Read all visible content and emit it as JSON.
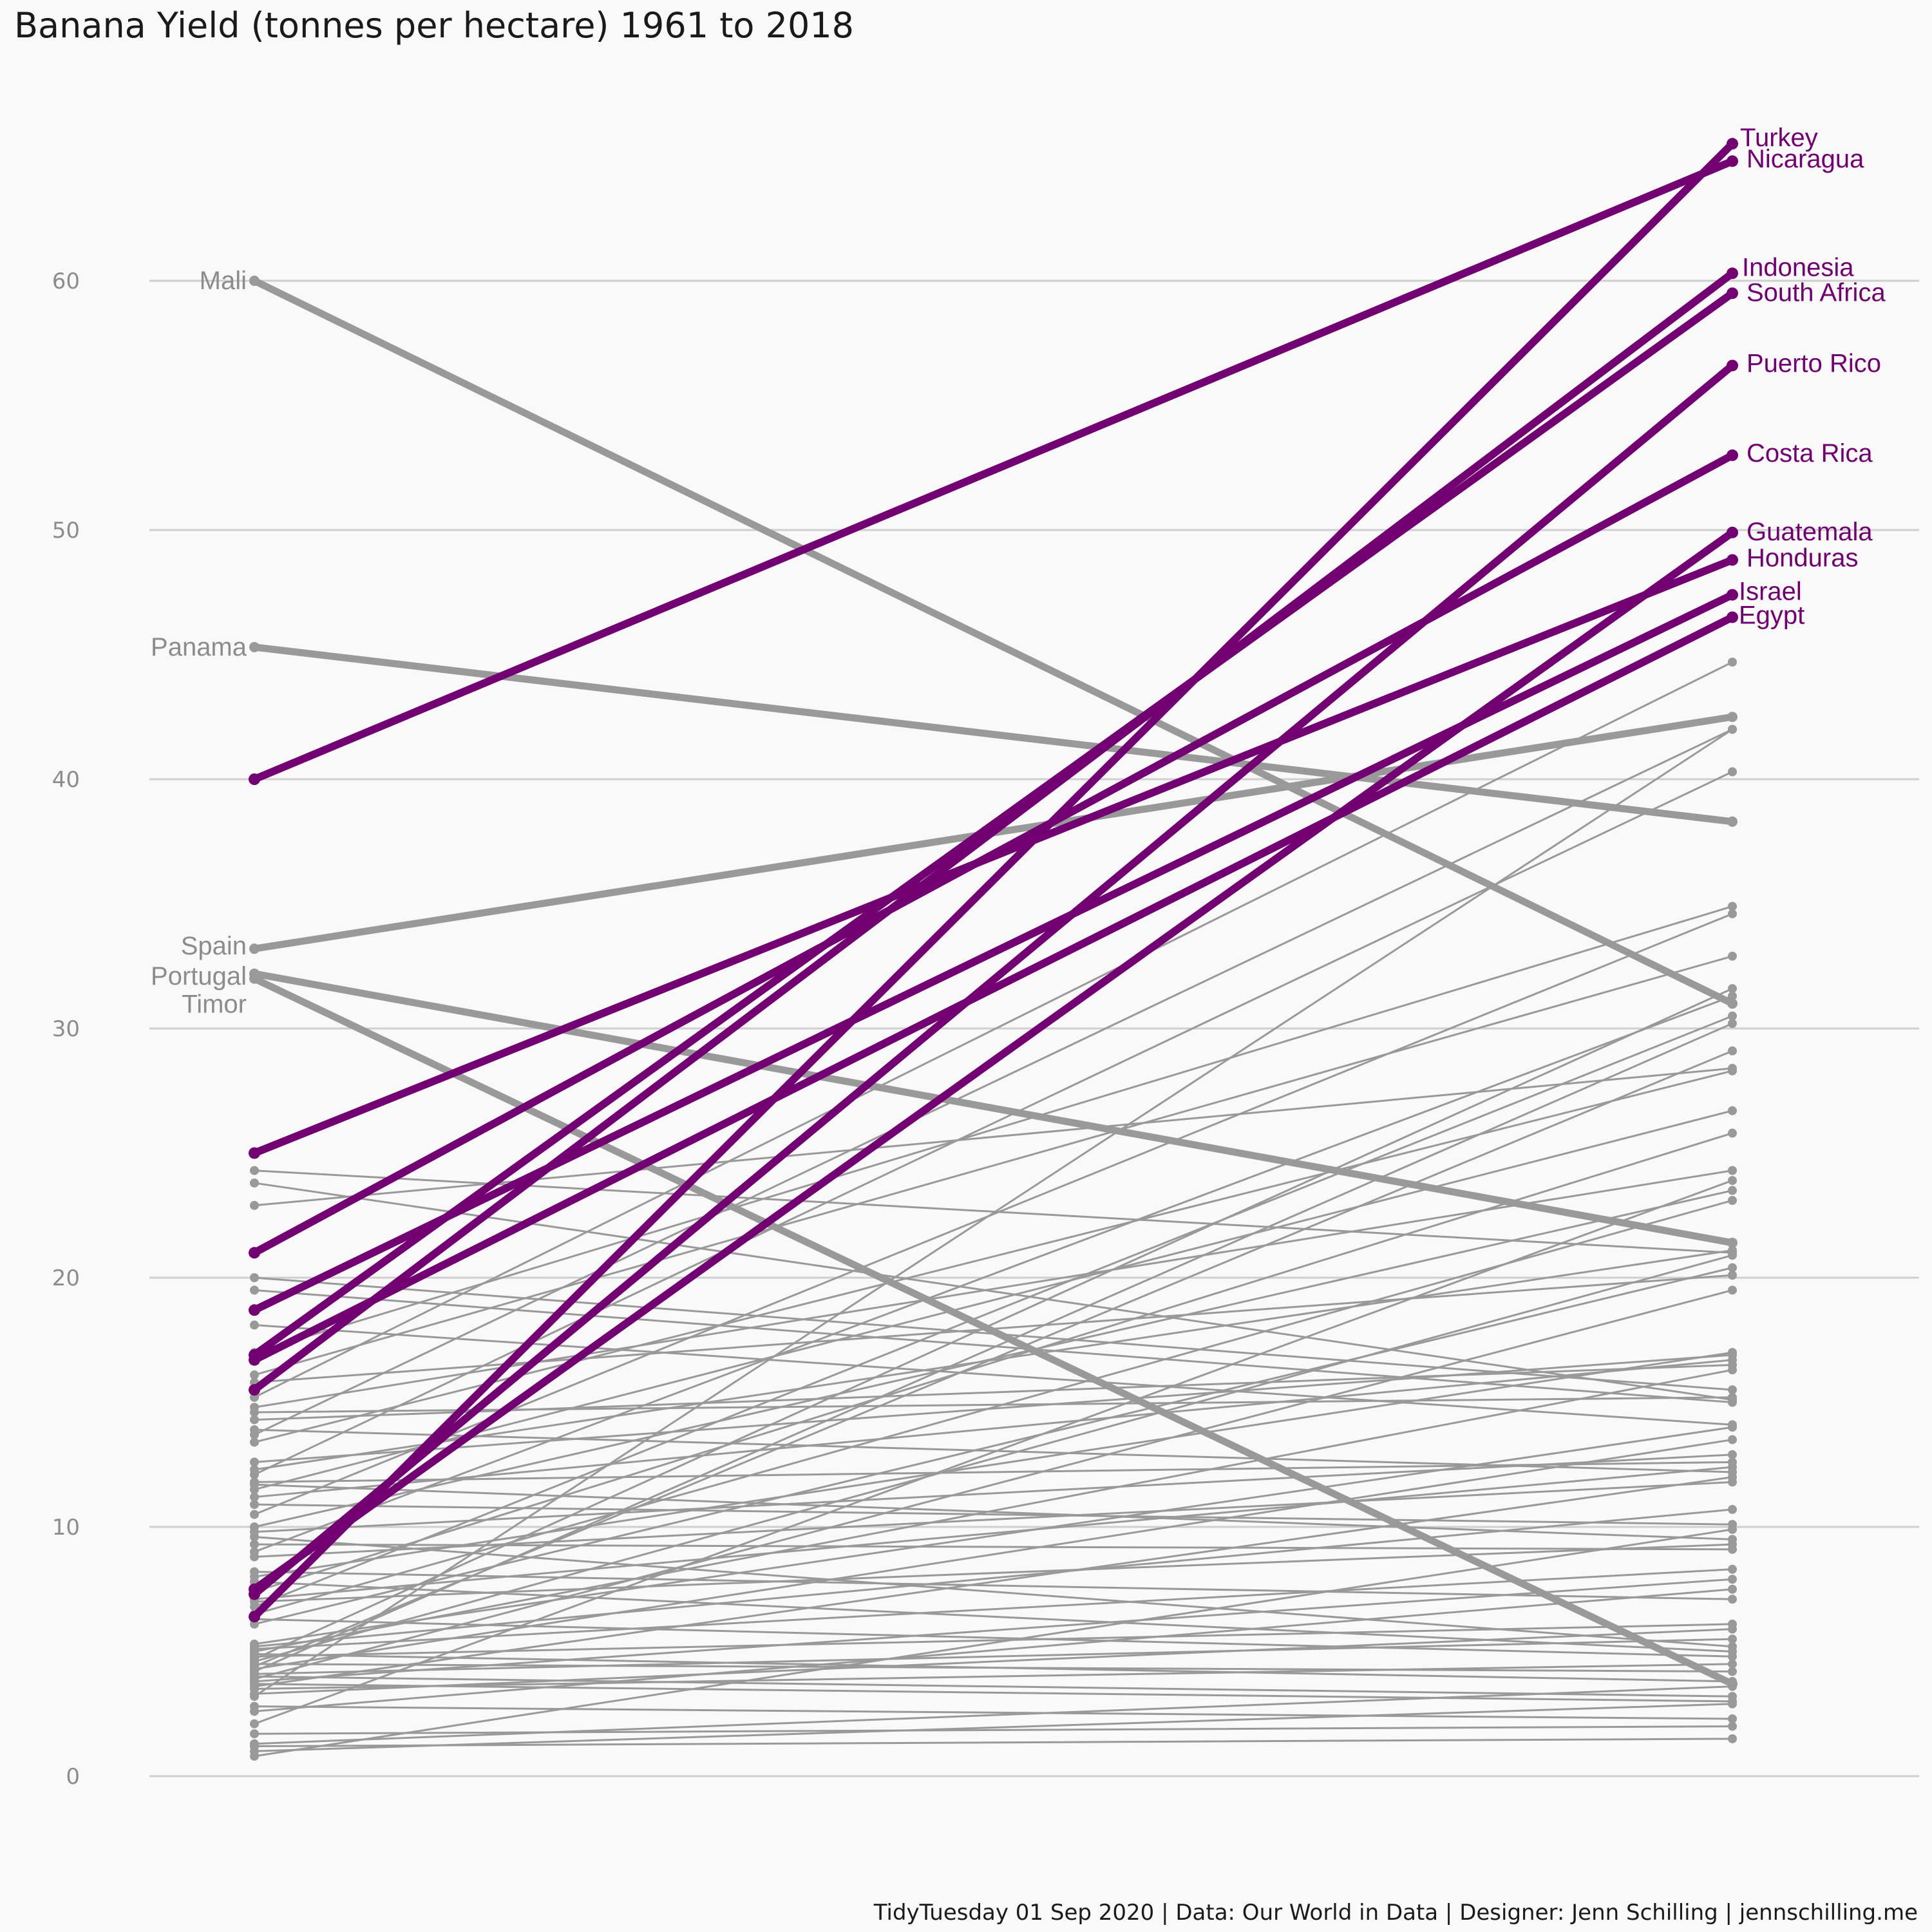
{
  "chart_data": {
    "type": "line",
    "title": "Banana Yield (tonnes per hectare) 1961 to 2018",
    "caption": "TidyTuesday 01 Sep 2020 | Data: Our World in Data | Designer: Jenn Schilling | jennschilling.me",
    "xlabel": "",
    "ylabel": "",
    "x": [
      1961,
      2018
    ],
    "ylim": [
      0,
      65
    ],
    "yticks": [
      0,
      10,
      20,
      30,
      40,
      50,
      60
    ],
    "grid": "horizontal",
    "colors": {
      "highlight": "#730073",
      "grey": "#999999",
      "text_grey": "#8c8c8c",
      "grid": "#cfcfcf",
      "background": "#f9f9fa"
    },
    "highlighted": [
      {
        "name": "Turkey",
        "values": [
          6.4,
          65.5
        ]
      },
      {
        "name": "Nicaragua",
        "values": [
          40.0,
          64.8
        ]
      },
      {
        "name": "Indonesia",
        "values": [
          15.5,
          60.3
        ]
      },
      {
        "name": "South Africa",
        "values": [
          16.9,
          59.5
        ]
      },
      {
        "name": "Puerto Rico",
        "values": [
          7.3,
          56.6
        ]
      },
      {
        "name": "Costa Rica",
        "values": [
          21.0,
          53.0
        ]
      },
      {
        "name": "Guatemala",
        "values": [
          7.5,
          49.9
        ]
      },
      {
        "name": "Honduras",
        "values": [
          25.0,
          48.8
        ]
      },
      {
        "name": "Israel",
        "values": [
          18.7,
          47.4
        ]
      },
      {
        "name": "Egypt",
        "values": [
          16.7,
          46.5
        ]
      }
    ],
    "labeled_decliners": [
      {
        "name": "Mali",
        "values": [
          60.0,
          31.0
        ]
      },
      {
        "name": "Panama",
        "values": [
          45.3,
          38.3
        ]
      },
      {
        "name": "Spain",
        "values": [
          33.2,
          42.5
        ]
      },
      {
        "name": "Portugal",
        "values": [
          32.2,
          21.4
        ]
      },
      {
        "name": "Timor",
        "values": [
          32.0,
          3.7
        ]
      }
    ],
    "other_countries": [
      [
        24.3,
        21.0
      ],
      [
        23.8,
        15.1
      ],
      [
        22.9,
        28.4
      ],
      [
        20.0,
        15.5
      ],
      [
        19.5,
        15.0
      ],
      [
        18.1,
        14.1
      ],
      [
        17.0,
        34.9
      ],
      [
        16.1,
        32.9
      ],
      [
        15.8,
        20.1
      ],
      [
        15.2,
        44.7
      ],
      [
        14.8,
        24.3
      ],
      [
        14.3,
        16.5
      ],
      [
        13.9,
        12.2
      ],
      [
        13.7,
        42.0
      ],
      [
        13.4,
        28.3
      ],
      [
        12.3,
        21.1
      ],
      [
        12.1,
        40.3
      ],
      [
        11.8,
        12.6
      ],
      [
        11.7,
        9.5
      ],
      [
        11.5,
        26.7
      ],
      [
        11.2,
        16.7
      ],
      [
        10.9,
        10.1
      ],
      [
        10.5,
        34.6
      ],
      [
        10.0,
        23.5
      ],
      [
        9.8,
        12.9
      ],
      [
        9.3,
        9.1
      ],
      [
        9.0,
        31.3
      ],
      [
        8.8,
        11.8
      ],
      [
        8.2,
        7.1
      ],
      [
        8.0,
        17.0
      ],
      [
        7.8,
        5.0
      ],
      [
        7.4,
        25.8
      ],
      [
        7.1,
        12.4
      ],
      [
        6.8,
        30.5
      ],
      [
        6.5,
        23.1
      ],
      [
        6.3,
        4.8
      ],
      [
        5.2,
        10.7
      ],
      [
        5.1,
        8.3
      ],
      [
        5.0,
        16.3
      ],
      [
        4.9,
        3.8
      ],
      [
        4.8,
        6.1
      ],
      [
        4.7,
        31.6
      ],
      [
        4.6,
        20.9
      ],
      [
        4.5,
        4.2
      ],
      [
        4.4,
        29.1
      ],
      [
        4.3,
        13.5
      ],
      [
        4.2,
        30.2
      ],
      [
        4.1,
        5.5
      ],
      [
        4.0,
        3.2
      ],
      [
        3.9,
        19.5
      ],
      [
        3.8,
        7.9
      ],
      [
        3.7,
        3.0
      ],
      [
        3.6,
        12.0
      ],
      [
        3.5,
        4.5
      ],
      [
        3.3,
        5.9
      ],
      [
        3.2,
        42.0
      ],
      [
        2.8,
        2.3
      ],
      [
        2.6,
        7.5
      ],
      [
        2.1,
        23.9
      ],
      [
        1.7,
        2.0
      ],
      [
        1.3,
        3.6
      ],
      [
        1.2,
        1.5
      ],
      [
        1.0,
        2.9
      ],
      [
        0.8,
        9.9
      ],
      [
        5.3,
        14.0
      ],
      [
        6.1,
        20.4
      ],
      [
        7.0,
        9.3
      ],
      [
        9.6,
        5.2
      ],
      [
        12.6,
        16.9
      ],
      [
        14.6,
        15.2
      ]
    ]
  }
}
